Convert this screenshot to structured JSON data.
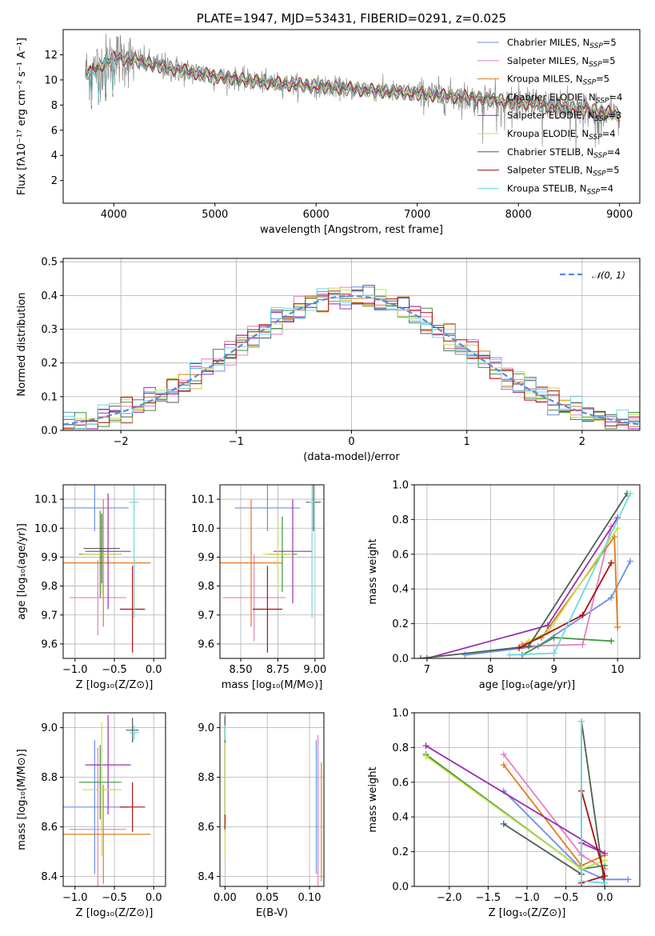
{
  "colors": {
    "Chabrier MILES": "#6b8ee8",
    "Salpeter MILES": "#e57fbf",
    "Kroupa MILES": "#e07b1a",
    "Chabrier ELODIE": "#3f8f3f",
    "Salpeter ELODIE": "#9b2fb0",
    "Kroupa ELODIE": "#c8e04a",
    "Chabrier STELIB": "#4a6050",
    "Salpeter STELIB": "#b00e0e",
    "Kroupa STELIB": "#6fd8e0",
    "data": "#888888",
    "normal": "#5a8ad8",
    "grid": "#b0b0b0"
  },
  "chart_data": [
    {
      "id": "spectrum",
      "type": "line",
      "title": "PLATE=1947, MJD=53431, FIBERID=0291, z=0.025",
      "xlabel": "wavelength [Angstrom, rest frame]",
      "ylabel": "Flux [fλ10⁻¹⁷ erg cm⁻² s⁻¹ A⁻¹]",
      "xlim": [
        3500,
        9200
      ],
      "ylim": [
        0.2,
        14
      ],
      "xticks": [
        4000,
        5000,
        6000,
        7000,
        8000,
        9000
      ],
      "yticks": [
        2,
        4,
        6,
        8,
        10,
        12
      ],
      "grid": false,
      "legend_placement": "upper right",
      "legend": [
        {
          "model": "Chabrier MILES",
          "label": "Chabrier MILES, N",
          "nssp": "=5"
        },
        {
          "model": "Salpeter MILES",
          "label": "Salpeter MILES, N",
          "nssp": "=5"
        },
        {
          "model": "Kroupa MILES",
          "label": "Kroupa MILES, N",
          "nssp": "=5"
        },
        {
          "model": "Chabrier ELODIE",
          "label": "Chabrier ELODIE, N",
          "nssp": "=4"
        },
        {
          "model": "Salpeter ELODIE",
          "label": "Salpeter ELODIE, N",
          "nssp": "=3"
        },
        {
          "model": "Kroupa ELODIE",
          "label": "Kroupa ELODIE, N",
          "nssp": "=4"
        },
        {
          "model": "Chabrier STELIB",
          "label": "Chabrier STELIB, N",
          "nssp": "=4"
        },
        {
          "model": "Salpeter STELIB",
          "label": "Salpeter STELIB, N",
          "nssp": "=5"
        },
        {
          "model": "Kroupa STELIB",
          "label": "Kroupa STELIB, N",
          "nssp": "=4"
        }
      ],
      "legend_subscript": "SSP",
      "continuum": {
        "x": [
          3720,
          3900,
          4000,
          4200,
          4500,
          5000,
          5500,
          6000,
          6500,
          7000,
          7500,
          8000,
          8500,
          9000
        ],
        "y": [
          10.5,
          11.3,
          11.8,
          11.6,
          11.0,
          10.3,
          9.8,
          9.5,
          9.2,
          8.9,
          8.6,
          8.2,
          7.8,
          7.3
        ]
      }
    },
    {
      "id": "residuals",
      "type": "line",
      "xlabel": "(data-model)/error",
      "ylabel": "Normed distribution",
      "xlim": [
        -2.5,
        2.5
      ],
      "ylim": [
        0,
        0.51
      ],
      "xticks": [
        -2,
        -1,
        0,
        1,
        2
      ],
      "yticks": [
        0.0,
        0.1,
        0.2,
        0.3,
        0.4,
        0.5
      ],
      "grid": true,
      "legend_placement": "upper right",
      "normal_label": "𝒩(0, 1)"
    },
    {
      "id": "age_vs_Z",
      "type": "scatter",
      "xlabel": "Z [log₁₀(Z/Z⊙)]",
      "ylabel": "age  [log₁₀(age/yr)]",
      "xlim": [
        -1.15,
        0.15
      ],
      "ylim": [
        9.55,
        10.15
      ],
      "xticks": [
        -1.0,
        -0.5,
        0.0
      ],
      "yticks": [
        9.6,
        9.7,
        9.8,
        9.9,
        10.0,
        10.1
      ],
      "grid": true,
      "points": [
        {
          "model": "Chabrier MILES",
          "x": -0.75,
          "y": 10.07,
          "xerr": 0.43,
          "yerr": 0.08
        },
        {
          "model": "Salpeter MILES",
          "x": -0.71,
          "y": 9.76,
          "xerr": 0.36,
          "yerr": 0.13
        },
        {
          "model": "Kroupa MILES",
          "x": -0.64,
          "y": 9.88,
          "xerr": 0.6,
          "yerr": 0.22
        },
        {
          "model": "Chabrier ELODIE",
          "x": -0.68,
          "y": 9.91,
          "xerr": 0.27,
          "yerr": 0.15
        },
        {
          "model": "Salpeter ELODIE",
          "x": -0.58,
          "y": 9.92,
          "xerr": 0.29,
          "yerr": 0.2
        },
        {
          "model": "Kroupa ELODIE",
          "x": -0.66,
          "y": 9.91,
          "xerr": 0.25,
          "yerr": 0.14
        },
        {
          "model": "Chabrier STELIB",
          "x": -0.66,
          "y": 9.93,
          "xerr": 0.23,
          "yerr": 0.12
        },
        {
          "model": "Salpeter STELIB",
          "x": -0.27,
          "y": 9.72,
          "xerr": 0.16,
          "yerr": 0.15
        },
        {
          "model": "Kroupa STELIB",
          "x": -0.25,
          "y": 10.09,
          "xerr": 0.06,
          "yerr": 0.4
        }
      ]
    },
    {
      "id": "age_vs_mass",
      "type": "scatter",
      "xlabel": "mass [log₁₀(M/M⊙)]",
      "ylabel": "",
      "xlim": [
        8.36,
        9.06
      ],
      "ylim": [
        9.55,
        10.15
      ],
      "xticks": [
        8.5,
        8.75,
        9.0
      ],
      "yticks": [
        9.6,
        9.7,
        9.8,
        9.9,
        10.0,
        10.1
      ],
      "grid": true,
      "points": [
        {
          "model": "Chabrier MILES",
          "x": 8.68,
          "y": 10.07,
          "xerr": 0.22,
          "yerr": 0.08
        },
        {
          "model": "Salpeter MILES",
          "x": 8.59,
          "y": 9.76,
          "xerr": 0.21,
          "yerr": 0.15
        },
        {
          "model": "Kroupa MILES",
          "x": 8.57,
          "y": 9.88,
          "xerr": 0.21,
          "yerr": 0.22
        },
        {
          "model": "Chabrier ELODIE",
          "x": 8.78,
          "y": 9.91,
          "xerr": 0.1,
          "yerr": 0.13
        },
        {
          "model": "Salpeter ELODIE",
          "x": 8.85,
          "y": 9.92,
          "xerr": 0.13,
          "yerr": 0.18
        },
        {
          "model": "Kroupa ELODIE",
          "x": 8.75,
          "y": 9.91,
          "xerr": 0.1,
          "yerr": 0.13
        },
        {
          "model": "Chabrier STELIB",
          "x": 8.99,
          "y": 10.09,
          "xerr": 0.05,
          "yerr": 0.1
        },
        {
          "model": "Salpeter STELIB",
          "x": 8.68,
          "y": 9.72,
          "xerr": 0.1,
          "yerr": 0.15
        },
        {
          "model": "Kroupa STELIB",
          "x": 8.98,
          "y": 10.09,
          "xerr": 0.02,
          "yerr": 0.4
        }
      ]
    },
    {
      "id": "mass_weight_vs_age",
      "type": "line",
      "xlabel": "age  [log₁₀(age/yr)]",
      "ylabel": "mass weight",
      "xlim": [
        6.8,
        10.35
      ],
      "ylim": [
        0,
        1.0
      ],
      "xticks": [
        7,
        8,
        9,
        10
      ],
      "yticks": [
        0.0,
        0.2,
        0.4,
        0.6,
        0.8,
        1.0
      ],
      "grid": true,
      "series": [
        {
          "model": "Chabrier MILES",
          "x": [
            7.6,
            8.75,
            9.9,
            10.2
          ],
          "y": [
            0.02,
            0.07,
            0.35,
            0.56
          ]
        },
        {
          "model": "Salpeter MILES",
          "x": [
            8.5,
            9.45,
            9.9
          ],
          "y": [
            0.07,
            0.08,
            0.76
          ]
        },
        {
          "model": "Kroupa MILES",
          "x": [
            8.5,
            8.8,
            9.95,
            10.0
          ],
          "y": [
            0.08,
            0.12,
            0.7,
            0.18
          ]
        },
        {
          "model": "Chabrier ELODIE",
          "x": [
            8.5,
            9.0,
            9.9
          ],
          "y": [
            0.02,
            0.12,
            0.1
          ]
        },
        {
          "model": "Salpeter ELODIE",
          "x": [
            7.0,
            8.9,
            10.0
          ],
          "y": [
            0.0,
            0.19,
            0.81
          ]
        },
        {
          "model": "Kroupa ELODIE",
          "x": [
            8.6,
            8.9,
            10.0
          ],
          "y": [
            0.1,
            0.15,
            0.75
          ]
        },
        {
          "model": "Chabrier STELIB",
          "x": [
            6.9,
            8.6,
            10.15
          ],
          "y": [
            0.0,
            0.07,
            0.95
          ]
        },
        {
          "model": "Salpeter STELIB",
          "x": [
            8.45,
            9.45,
            9.9
          ],
          "y": [
            0.06,
            0.25,
            0.55
          ]
        },
        {
          "model": "Kroupa STELIB",
          "x": [
            8.3,
            9.0,
            10.2
          ],
          "y": [
            0.02,
            0.03,
            0.95
          ]
        }
      ]
    },
    {
      "id": "mass_vs_Z",
      "type": "scatter",
      "xlabel": "Z [log₁₀(Z/Z⊙)]",
      "ylabel": "mass [log₁₀(M/M⊙)]",
      "xlim": [
        -1.15,
        0.15
      ],
      "ylim": [
        8.36,
        9.06
      ],
      "xticks": [
        -1.0,
        -0.5,
        0.0
      ],
      "yticks": [
        8.4,
        8.6,
        8.8,
        9.0
      ],
      "grid": true,
      "points": [
        {
          "model": "Chabrier MILES",
          "x": -0.75,
          "y": 8.68,
          "xerr": 0.43,
          "yerr": 0.27
        },
        {
          "model": "Salpeter MILES",
          "x": -0.71,
          "y": 8.59,
          "xerr": 0.36,
          "yerr": 0.33
        },
        {
          "model": "Kroupa MILES",
          "x": -0.64,
          "y": 8.57,
          "xerr": 0.6,
          "yerr": 0.2
        },
        {
          "model": "Chabrier ELODIE",
          "x": -0.68,
          "y": 8.78,
          "xerr": 0.27,
          "yerr": 0.15
        },
        {
          "model": "Salpeter ELODIE",
          "x": -0.58,
          "y": 8.85,
          "xerr": 0.29,
          "yerr": 0.2
        },
        {
          "model": "Kroupa ELODIE",
          "x": -0.66,
          "y": 8.75,
          "xerr": 0.25,
          "yerr": 0.27
        },
        {
          "model": "Chabrier STELIB",
          "x": -0.27,
          "y": 8.99,
          "xerr": 0.08,
          "yerr": 0.05
        },
        {
          "model": "Salpeter STELIB",
          "x": -0.27,
          "y": 8.68,
          "xerr": 0.16,
          "yerr": 0.1
        },
        {
          "model": "Kroupa STELIB",
          "x": -0.25,
          "y": 8.98,
          "xerr": 0.06,
          "yerr": 0.03
        }
      ]
    },
    {
      "id": "mass_vs_ebv",
      "type": "scatter",
      "xlabel": "E(B-V)",
      "ylabel": "",
      "xlim": [
        -0.006,
        0.117
      ],
      "ylim": [
        8.36,
        9.06
      ],
      "xticks": [
        0.0,
        0.05,
        0.1
      ],
      "yticks": [
        8.4,
        8.6,
        8.8,
        9.0
      ],
      "grid": true,
      "points": [
        {
          "model": "Chabrier MILES",
          "x": 0.108,
          "y": 8.68,
          "yerr": 0.27
        },
        {
          "model": "Salpeter MILES",
          "x": 0.11,
          "y": 8.59,
          "yerr": 0.38
        },
        {
          "model": "Kroupa MILES",
          "x": 0.114,
          "y": 8.62,
          "yerr": 0.24
        },
        {
          "model": "Chabrier ELODIE",
          "x": 0.0,
          "y": 8.78,
          "yerr": 0.2
        },
        {
          "model": "Salpeter ELODIE",
          "x": 0.0,
          "y": 8.85,
          "yerr": 0.2
        },
        {
          "model": "Kroupa ELODIE",
          "x": 0.0,
          "y": 8.75,
          "yerr": 0.27
        },
        {
          "model": "Chabrier STELIB",
          "x": 0.0,
          "y": 8.99,
          "yerr": 0.05
        },
        {
          "model": "Salpeter STELIB",
          "x": 0.0,
          "y": 8.62,
          "yerr": 0.03
        },
        {
          "model": "Kroupa STELIB",
          "x": 0.0,
          "y": 8.98,
          "yerr": 0.03
        }
      ]
    },
    {
      "id": "mass_weight_vs_Z",
      "type": "line",
      "xlabel": "Z [log₁₀(Z/Z⊙)]",
      "ylabel": "mass weight",
      "xlim": [
        -2.45,
        0.45
      ],
      "ylim": [
        0,
        1.0
      ],
      "xticks": [
        -2.0,
        -1.5,
        -1.0,
        -0.5,
        0.0
      ],
      "yticks": [
        0.0,
        0.2,
        0.4,
        0.6,
        0.8,
        1.0
      ],
      "grid": true,
      "series": [
        {
          "model": "Chabrier MILES",
          "x": [
            -1.3,
            -0.3,
            0.0,
            0.3
          ],
          "y": [
            0.55,
            0.1,
            0.04,
            0.04
          ]
        },
        {
          "model": "Salpeter MILES",
          "x": [
            -1.3,
            -0.3,
            0.0
          ],
          "y": [
            0.76,
            0.18,
            0.1
          ]
        },
        {
          "model": "Kroupa MILES",
          "x": [
            -1.3,
            -0.3,
            0.0
          ],
          "y": [
            0.7,
            0.12,
            0.18
          ]
        },
        {
          "model": "Chabrier ELODIE",
          "x": [
            -2.3,
            -0.3,
            0.0
          ],
          "y": [
            0.76,
            0.1,
            0.12
          ]
        },
        {
          "model": "Salpeter ELODIE",
          "x": [
            -2.3,
            0.0,
            -0.3
          ],
          "y": [
            0.81,
            0.19,
            0.25
          ]
        },
        {
          "model": "Kroupa ELODIE",
          "x": [
            -2.3,
            -0.3,
            0.0
          ],
          "y": [
            0.75,
            0.1,
            0.15
          ]
        },
        {
          "model": "Chabrier STELIB",
          "x": [
            -1.3,
            -0.3,
            -0.3,
            0.0
          ],
          "y": [
            0.36,
            0.07,
            0.95,
            0.0
          ]
        },
        {
          "model": "Salpeter STELIB",
          "x": [
            -0.3,
            0.0,
            -0.3
          ],
          "y": [
            0.55,
            0.06,
            0.02
          ]
        },
        {
          "model": "Kroupa STELIB",
          "x": [
            -0.3,
            -0.3,
            0.0
          ],
          "y": [
            0.95,
            0.03,
            0.02
          ]
        }
      ]
    }
  ]
}
